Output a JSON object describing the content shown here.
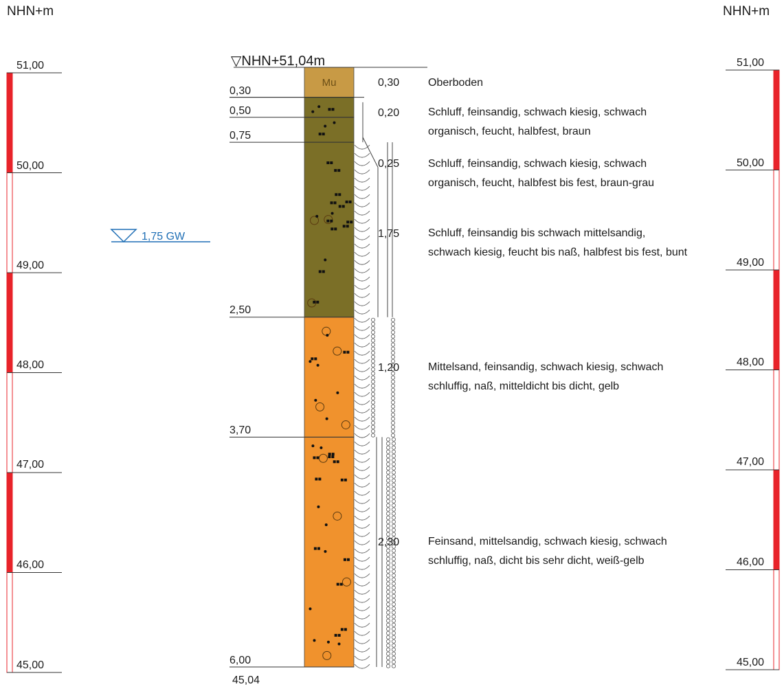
{
  "unit_left": "NHN+m",
  "unit_right": "NHN+m",
  "top_elevation": "▽NHN+51,04m",
  "groundwater": {
    "label": "1,75 GW",
    "depth": 1.75,
    "color": "#1f6fb5"
  },
  "base_elevation": "45,04",
  "scale_ticks": [
    "51,00",
    "50,00",
    "49,00",
    "48,00",
    "47,00",
    "46,00",
    "45,00"
  ],
  "scale_red_color": "#e8232a",
  "depth_labels": [
    "0,30",
    "0,50",
    "0,75",
    "2,50",
    "3,70",
    "6,00"
  ],
  "layers": [
    {
      "from": 0.0,
      "to": 0.3,
      "symbol": "Mu",
      "color": "#c89a45",
      "thickness": "0,30",
      "description": "Oberboden"
    },
    {
      "from": 0.3,
      "to": 0.5,
      "color": "#7b6f27",
      "thickness": "0,20",
      "description": "Schluff, feinsandig, schwach kiesig, schwach organisch, feucht, halbfest, braun"
    },
    {
      "from": 0.5,
      "to": 0.75,
      "color": "#7b6f27",
      "thickness": "0,25",
      "description": "Schluff, feinsandig, schwach kiesig, schwach organisch, feucht, halbfest bis fest, braun-grau"
    },
    {
      "from": 0.75,
      "to": 2.5,
      "color": "#7b6f27",
      "thickness": "1,75",
      "description": "Schluff, feinsandig bis schwach mittelsandig, schwach kiesig, feucht bis naß, halbfest bis fest, bunt"
    },
    {
      "from": 2.5,
      "to": 3.7,
      "color": "#f0922d",
      "thickness": "1,20",
      "description": "Mittelsand, feinsandig, schwach kiesig, schwach schluffig, naß, mitteldicht bis dicht, gelb"
    },
    {
      "from": 3.7,
      "to": 6.0,
      "color": "#f0922d",
      "thickness": "2,30",
      "description": "Feinsand, mittelsandig, schwach kiesig, schwach schluffig, naß, dicht bis sehr dicht, weiß-gelb"
    }
  ]
}
